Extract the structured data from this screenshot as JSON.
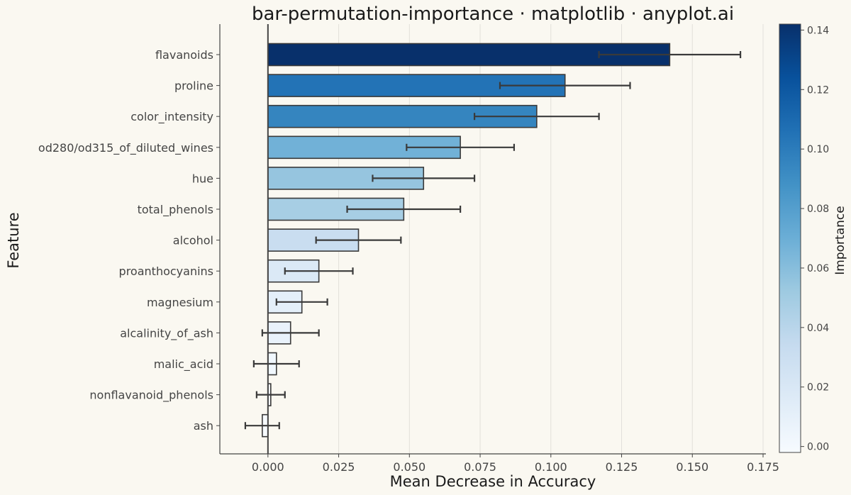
{
  "chart_data": {
    "type": "bar",
    "orientation": "horizontal",
    "title": "bar-permutation-importance · matplotlib · anyplot.ai",
    "xlabel": "Mean Decrease in Accuracy",
    "ylabel": "Feature",
    "xlim": [
      -0.017,
      0.176
    ],
    "xticks": [
      "0.000",
      "0.025",
      "0.050",
      "0.075",
      "0.100",
      "0.125",
      "0.150",
      "0.175"
    ],
    "grid": "vertical",
    "colormap": "Blues",
    "categories": [
      "flavanoids",
      "proline",
      "color_intensity",
      "od280/od315_of_diluted_wines",
      "hue",
      "total_phenols",
      "alcohol",
      "proanthocyanins",
      "magnesium",
      "alcalinity_of_ash",
      "malic_acid",
      "nonflavanoid_phenols",
      "ash"
    ],
    "values": [
      0.142,
      0.105,
      0.095,
      0.068,
      0.055,
      0.048,
      0.032,
      0.018,
      0.012,
      0.008,
      0.003,
      0.001,
      -0.002
    ],
    "errors": [
      0.025,
      0.023,
      0.022,
      0.019,
      0.018,
      0.02,
      0.015,
      0.012,
      0.009,
      0.01,
      0.008,
      0.005,
      0.006
    ],
    "colorbar": {
      "label": "Importance",
      "range": [
        -0.002,
        0.142
      ],
      "ticks": [
        "0.00",
        "0.02",
        "0.04",
        "0.06",
        "0.08",
        "0.10",
        "0.12",
        "0.14"
      ]
    }
  }
}
